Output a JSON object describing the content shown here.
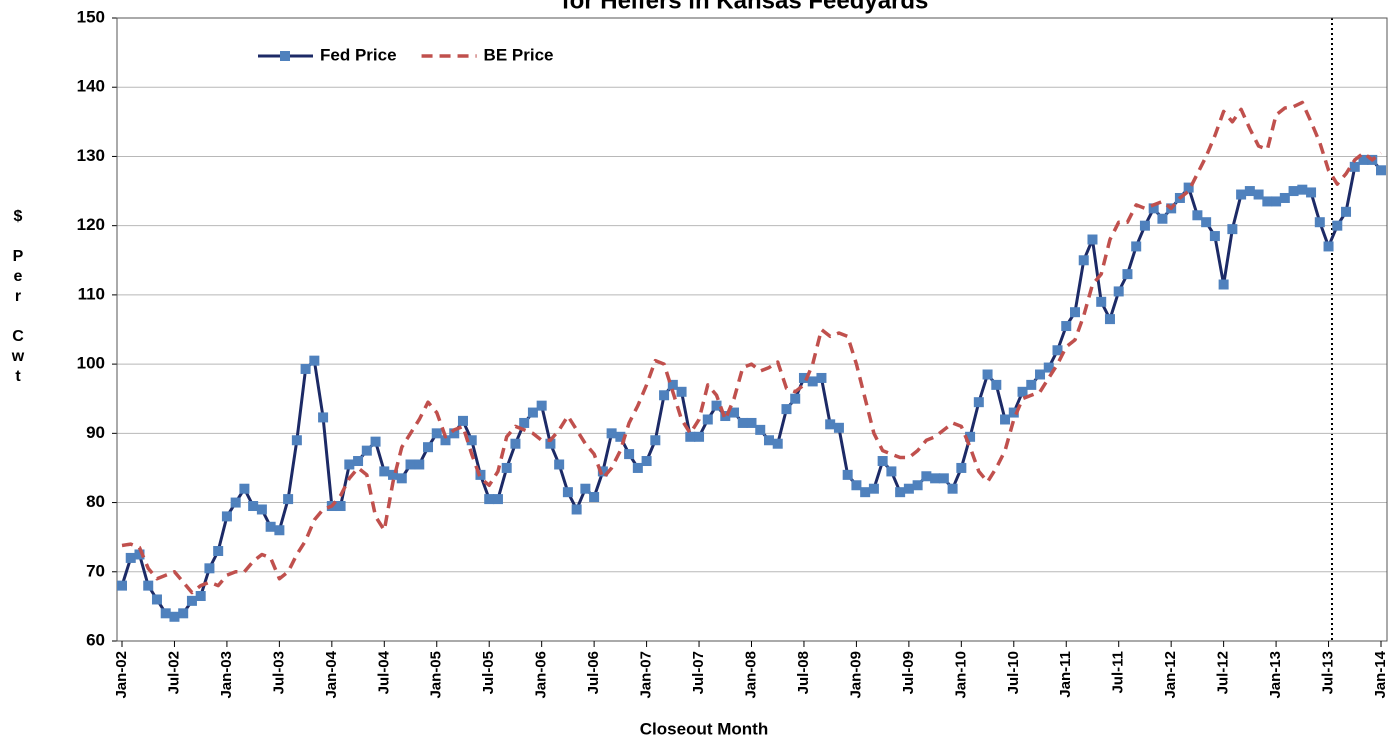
{
  "chart_data": {
    "type": "line",
    "title": "for Heifers in Kansas Feedyards",
    "xlabel": "Closeout Month",
    "ylabel": "$ Per Cwt",
    "categories": [
      "Jan-02",
      null,
      null,
      null,
      null,
      null,
      "Jul-02",
      null,
      null,
      null,
      null,
      null,
      "Jan-03",
      null,
      null,
      null,
      null,
      null,
      "Jul-03",
      null,
      null,
      null,
      null,
      null,
      "Jan-04",
      null,
      null,
      null,
      null,
      null,
      "Jul-04",
      null,
      null,
      null,
      null,
      null,
      "Jan-05",
      null,
      null,
      null,
      null,
      null,
      "Jul-05",
      null,
      null,
      null,
      null,
      null,
      "Jan-06",
      null,
      null,
      null,
      null,
      null,
      "Jul-06",
      null,
      null,
      null,
      null,
      null,
      "Jan-07",
      null,
      null,
      null,
      null,
      null,
      "Jul-07",
      null,
      null,
      null,
      null,
      null,
      "Jan-08",
      null,
      null,
      null,
      null,
      null,
      "Jul-08",
      null,
      null,
      null,
      null,
      null,
      "Jan-09",
      null,
      null,
      null,
      null,
      null,
      "Jul-09",
      null,
      null,
      null,
      null,
      null,
      "Jan-10",
      null,
      null,
      null,
      null,
      null,
      "Jul-10",
      null,
      null,
      null,
      null,
      null,
      "Jan-11",
      null,
      null,
      null,
      null,
      null,
      "Jul-11",
      null,
      null,
      null,
      null,
      null,
      "Jan-12",
      null,
      null,
      null,
      null,
      null,
      "Jul-12",
      null,
      null,
      null,
      null,
      null,
      "Jan-13",
      null,
      null,
      null,
      null,
      null,
      "Jul-13",
      null,
      null,
      null,
      null,
      null,
      "Jan-14"
    ],
    "series": [
      {
        "name": "Fed Price",
        "color": "#1c2a66",
        "marker_color": "#4f81bd",
        "dash": false,
        "markers": true,
        "values": [
          68,
          72,
          72.5,
          68,
          66,
          64,
          63.5,
          64,
          65.8,
          66.5,
          70.5,
          73,
          78,
          80,
          82,
          79.5,
          79,
          76.5,
          76,
          80.5,
          89,
          99.3,
          100.5,
          92.3,
          79.5,
          79.5,
          85.5,
          86,
          87.5,
          88.8,
          84.5,
          84,
          83.5,
          85.5,
          85.5,
          88,
          90,
          89,
          90,
          91.8,
          89,
          84,
          80.5,
          80.5,
          85,
          88.5,
          91.5,
          93,
          94,
          88.5,
          85.5,
          81.5,
          79,
          82,
          80.8,
          84.5,
          90,
          89.5,
          87,
          85,
          86,
          89,
          95.5,
          97,
          96,
          89.5,
          89.5,
          92,
          94,
          92.5,
          93,
          91.5,
          91.5,
          90.5,
          89,
          88.5,
          93.5,
          95,
          98,
          97.5,
          98,
          91.3,
          90.8,
          84,
          82.5,
          81.5,
          82,
          86,
          84.5,
          81.5,
          82,
          82.5,
          83.8,
          83.5,
          83.5,
          82,
          85,
          89.5,
          94.5,
          98.5,
          97,
          92,
          93,
          96,
          97,
          98.5,
          99.5,
          102,
          105.5,
          107.5,
          115,
          118,
          109,
          106.5,
          110.5,
          113,
          117,
          120,
          122.5,
          121,
          122.5,
          124,
          125.5,
          121.5,
          120.5,
          118.5,
          111.5,
          119.5,
          124.5,
          125,
          124.5,
          123.5,
          123.5,
          124,
          125,
          125.2,
          124.8,
          120.5,
          117,
          120,
          122,
          128.5,
          129.5,
          129.5,
          128
        ]
      },
      {
        "name": "BE Price",
        "color": "#c0504d",
        "dash": true,
        "markers": false,
        "values": [
          73.8,
          74,
          73.5,
          70.5,
          69,
          69.5,
          70,
          68.5,
          67,
          68,
          68.5,
          68,
          69.5,
          70,
          70,
          71.5,
          72.5,
          72,
          69,
          70,
          72.5,
          74.5,
          77.5,
          79,
          79.5,
          81,
          83.5,
          85,
          84,
          78,
          76,
          83,
          88,
          90,
          92,
          94.5,
          93,
          89.5,
          90.5,
          91,
          87,
          83.5,
          82.5,
          84.5,
          89.5,
          91,
          90.5,
          90,
          89,
          89,
          90.5,
          92.5,
          90.5,
          88.5,
          87,
          83.5,
          85,
          87.5,
          91.5,
          94,
          97,
          100.5,
          100,
          96,
          92,
          90,
          92,
          97,
          95.5,
          92,
          95,
          99.5,
          100,
          99,
          99.5,
          100.3,
          96.5,
          96,
          97,
          100,
          105,
          104,
          104.5,
          104,
          100,
          95,
          90,
          87.5,
          87,
          86.5,
          86.5,
          87.5,
          89,
          89.5,
          90.5,
          91.5,
          91,
          88,
          84.5,
          83,
          85,
          87.5,
          92,
          95,
          95.5,
          96,
          98,
          100,
          102.5,
          103.5,
          107,
          111.5,
          113,
          118,
          120.5,
          120.5,
          123,
          122.5,
          123,
          123.5,
          122.5,
          124,
          125,
          127.5,
          130,
          133,
          136.5,
          135,
          136.8,
          134,
          131.5,
          131,
          136,
          137,
          137.2,
          137.8,
          135,
          132,
          128,
          126,
          127.5,
          129.5,
          130.5,
          129.5,
          130.5
        ]
      }
    ],
    "ylim": [
      60,
      150
    ],
    "yticks": [
      60,
      70,
      80,
      90,
      100,
      110,
      120,
      130,
      140,
      150
    ],
    "grid": true,
    "legend": "top-left"
  }
}
